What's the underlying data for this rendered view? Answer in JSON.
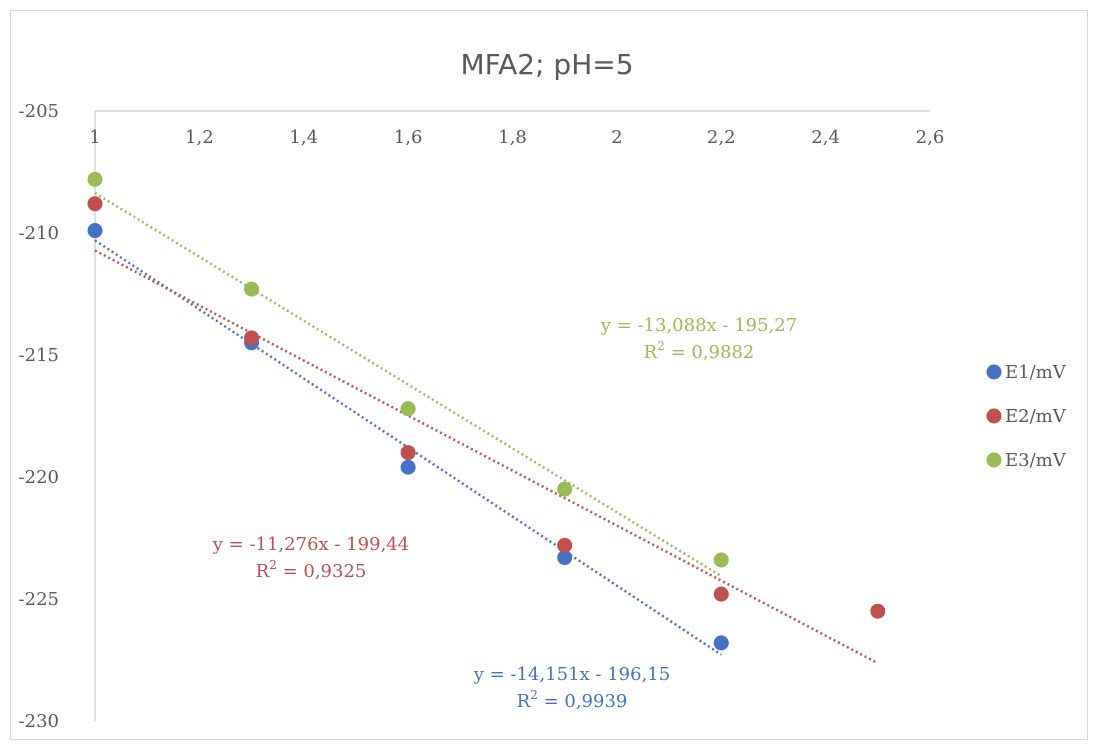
{
  "chart_data": {
    "type": "scatter",
    "title": "MFA2; pH=5",
    "xlabel": "",
    "ylabel": "",
    "xlim": [
      1,
      2.6
    ],
    "ylim": [
      -230,
      -205
    ],
    "x_axis_crosses_at_y": -205,
    "x_axis_labels_position": "top",
    "x_ticks": [
      1,
      1.2,
      1.4,
      1.6,
      1.8,
      2,
      2.2,
      2.4,
      2.6
    ],
    "x_tick_labels": [
      "1",
      "1,2",
      "1,4",
      "1,6",
      "1,8",
      "2",
      "2,2",
      "2,4",
      "2,6"
    ],
    "y_ticks": [
      -205,
      -210,
      -215,
      -220,
      -225,
      -230
    ],
    "y_tick_labels": [
      "-205",
      "-210",
      "-215",
      "-220",
      "-225",
      "-230"
    ],
    "grid": false,
    "legend_position": "right",
    "series": [
      {
        "name": "E1/mV",
        "color": "#4472c4",
        "points": [
          [
            1,
            -209.9
          ],
          [
            1.3,
            -214.5
          ],
          [
            1.6,
            -219.6
          ],
          [
            1.9,
            -223.3
          ],
          [
            2.2,
            -226.8
          ]
        ],
        "trendline": {
          "slope": -14.151,
          "intercept": -196.15,
          "x_range": [
            1,
            2.2
          ],
          "equation": "y = -14,151x - 196,15",
          "r2_prefix": "R",
          "r2_exp": "2",
          "r2_value": " = 0,9939"
        }
      },
      {
        "name": "E2/mV",
        "color": "#c0504d",
        "points": [
          [
            1,
            -208.8
          ],
          [
            1.3,
            -214.3
          ],
          [
            1.6,
            -219
          ],
          [
            1.9,
            -222.8
          ],
          [
            2.2,
            -224.8
          ],
          [
            2.5,
            -225.5
          ]
        ],
        "trendline": {
          "slope": -11.276,
          "intercept": -199.44,
          "x_range": [
            1,
            2.5
          ],
          "equation": "y = -11,276x - 199,44",
          "r2_prefix": "R",
          "r2_exp": "2",
          "r2_value": " = 0,9325"
        }
      },
      {
        "name": "E3/mV",
        "color": "#9bbb59",
        "points": [
          [
            1,
            -207.8
          ],
          [
            1.3,
            -212.3
          ],
          [
            1.6,
            -217.2
          ],
          [
            1.9,
            -220.5
          ],
          [
            2.2,
            -223.4
          ]
        ],
        "trendline": {
          "slope": -13.088,
          "intercept": -195.27,
          "x_range": [
            1,
            2.2
          ],
          "equation": "y = -13,088x - 195,27",
          "r2_prefix": "R",
          "r2_exp": "2",
          "r2_value": " = 0,9882"
        }
      }
    ]
  }
}
